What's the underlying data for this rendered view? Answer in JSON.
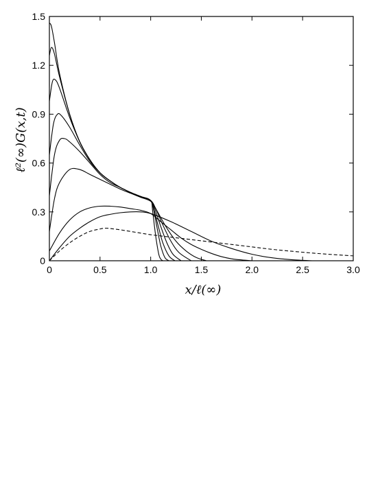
{
  "chart_data": {
    "type": "line",
    "title": "",
    "xlabel": "x/ℓ(∞)",
    "ylabel": "ℓ²(∞)G(x,t)",
    "xlim": [
      0,
      3.0
    ],
    "ylim": [
      0,
      1.5
    ],
    "xticks": [
      "0",
      "0.5",
      "1.0",
      "1.5",
      "2.0",
      "2.5",
      "3.0"
    ],
    "yticks": [
      "0",
      "0.3",
      "0.6",
      "0.9",
      "1.2",
      "1.5"
    ],
    "xtick_values": [
      0,
      0.5,
      1.0,
      1.5,
      2.0,
      2.5,
      3.0
    ],
    "ytick_values": [
      0,
      0.3,
      0.6,
      0.9,
      1.2,
      1.5
    ],
    "grid": false,
    "legend": "none",
    "series": [
      {
        "style": "solid",
        "x": [
          0,
          0.02,
          0.05,
          0.1,
          0.2,
          0.3,
          0.4,
          0.5,
          0.6,
          0.7,
          0.8,
          0.9,
          1.0,
          1.02,
          1.05,
          1.08,
          1.1,
          1.12
        ],
        "y": [
          1.46,
          1.44,
          1.34,
          1.15,
          0.9,
          0.73,
          0.62,
          0.54,
          0.49,
          0.45,
          0.42,
          0.395,
          0.37,
          0.3,
          0.15,
          0.04,
          0.01,
          0
        ]
      },
      {
        "style": "solid",
        "x": [
          0,
          0.02,
          0.05,
          0.1,
          0.2,
          0.3,
          0.4,
          0.5,
          0.6,
          0.7,
          0.8,
          0.9,
          1.0,
          1.03,
          1.07,
          1.1,
          1.14,
          1.18
        ],
        "y": [
          1.26,
          1.31,
          1.27,
          1.13,
          0.9,
          0.73,
          0.62,
          0.54,
          0.49,
          0.45,
          0.42,
          0.395,
          0.37,
          0.31,
          0.18,
          0.09,
          0.02,
          0
        ]
      },
      {
        "style": "solid",
        "x": [
          0,
          0.03,
          0.06,
          0.1,
          0.2,
          0.3,
          0.4,
          0.5,
          0.6,
          0.7,
          0.8,
          0.9,
          1.0,
          1.03,
          1.08,
          1.12,
          1.18,
          1.24
        ],
        "y": [
          0.98,
          1.1,
          1.11,
          1.06,
          0.88,
          0.73,
          0.62,
          0.54,
          0.49,
          0.45,
          0.42,
          0.395,
          0.37,
          0.32,
          0.2,
          0.11,
          0.03,
          0
        ]
      },
      {
        "style": "solid",
        "x": [
          0,
          0.04,
          0.08,
          0.12,
          0.2,
          0.3,
          0.4,
          0.5,
          0.6,
          0.7,
          0.8,
          0.9,
          1.0,
          1.04,
          1.1,
          1.16,
          1.22,
          1.3
        ],
        "y": [
          0.65,
          0.84,
          0.9,
          0.89,
          0.82,
          0.71,
          0.61,
          0.54,
          0.49,
          0.45,
          0.42,
          0.395,
          0.37,
          0.32,
          0.21,
          0.11,
          0.04,
          0
        ]
      },
      {
        "style": "solid",
        "x": [
          0,
          0.05,
          0.1,
          0.15,
          0.2,
          0.3,
          0.4,
          0.5,
          0.6,
          0.7,
          0.8,
          0.9,
          1.0,
          1.05,
          1.12,
          1.2,
          1.28,
          1.4
        ],
        "y": [
          0.4,
          0.65,
          0.74,
          0.75,
          0.73,
          0.67,
          0.6,
          0.53,
          0.48,
          0.45,
          0.42,
          0.395,
          0.37,
          0.32,
          0.22,
          0.12,
          0.05,
          0
        ]
      },
      {
        "style": "solid",
        "x": [
          0,
          0.05,
          0.1,
          0.2,
          0.3,
          0.4,
          0.5,
          0.6,
          0.7,
          0.8,
          0.9,
          1.0,
          1.05,
          1.15,
          1.25,
          1.35,
          1.45,
          1.55
        ],
        "y": [
          0.18,
          0.38,
          0.48,
          0.56,
          0.56,
          0.53,
          0.5,
          0.47,
          0.44,
          0.415,
          0.39,
          0.365,
          0.32,
          0.21,
          0.12,
          0.06,
          0.02,
          0
        ]
      },
      {
        "style": "solid",
        "x": [
          0,
          0.1,
          0.2,
          0.3,
          0.4,
          0.5,
          0.6,
          0.7,
          0.8,
          0.9,
          1.0,
          1.1,
          1.2,
          1.3,
          1.4,
          1.5,
          1.6,
          1.7,
          1.8,
          1.9,
          2.0
        ],
        "y": [
          0.06,
          0.17,
          0.25,
          0.3,
          0.325,
          0.335,
          0.335,
          0.33,
          0.32,
          0.31,
          0.29,
          0.24,
          0.19,
          0.14,
          0.1,
          0.07,
          0.045,
          0.025,
          0.012,
          0.005,
          0
        ]
      },
      {
        "style": "solid",
        "x": [
          0,
          0.1,
          0.2,
          0.3,
          0.4,
          0.5,
          0.6,
          0.7,
          0.8,
          0.9,
          1.0,
          1.2,
          1.4,
          1.6,
          1.8,
          2.0,
          2.2,
          2.4,
          2.6
        ],
        "y": [
          0.0,
          0.08,
          0.15,
          0.2,
          0.24,
          0.27,
          0.285,
          0.295,
          0.3,
          0.3,
          0.29,
          0.24,
          0.18,
          0.12,
          0.075,
          0.04,
          0.018,
          0.006,
          0
        ]
      },
      {
        "style": "dashed",
        "x": [
          0,
          0.1,
          0.2,
          0.3,
          0.4,
          0.5,
          0.55,
          0.6,
          0.7,
          0.8,
          0.9,
          1.0,
          1.2,
          1.4,
          1.6,
          1.8,
          2.0,
          2.2,
          2.4,
          2.6,
          2.8,
          3.0
        ],
        "y": [
          0.0,
          0.06,
          0.11,
          0.15,
          0.18,
          0.195,
          0.2,
          0.198,
          0.19,
          0.18,
          0.17,
          0.16,
          0.145,
          0.13,
          0.115,
          0.1,
          0.085,
          0.07,
          0.058,
          0.047,
          0.038,
          0.03
        ]
      }
    ]
  }
}
